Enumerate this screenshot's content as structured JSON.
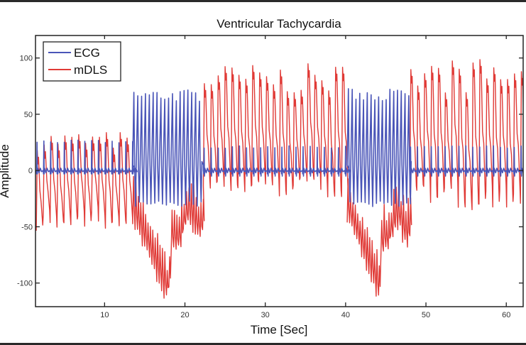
{
  "chart_data": {
    "type": "line",
    "title": "Ventricular Tachycardia",
    "xlabel": "Time  [Sec]",
    "ylabel": "Amplitude",
    "xlim": [
      1.4,
      62.1
    ],
    "ylim": [
      -121,
      120
    ],
    "xticks": [
      10,
      20,
      30,
      40,
      50,
      60
    ],
    "xtick_labels": [
      "10",
      "20",
      "30",
      "40",
      "50",
      "60"
    ],
    "yticks": [
      100,
      50,
      0,
      -50,
      -100
    ],
    "ytick_labels": [
      "100",
      "50",
      "0",
      "-50",
      "-100"
    ],
    "grid": false,
    "legend": {
      "position": "top-left",
      "entries": [
        "ECG",
        "mDLS"
      ]
    },
    "series": [
      {
        "name": "ECG",
        "color": "#4a55b8",
        "segments": [
          {
            "t_start": 1.5,
            "t_end": 13.5,
            "rhythm": "normal",
            "beat_interval_sec": 0.85,
            "peak": 27,
            "trough": -3
          },
          {
            "t_start": 13.5,
            "t_end": 22.3,
            "rhythm": "vt",
            "beat_interval_sec": 0.48,
            "peak": 72,
            "trough": -32
          },
          {
            "t_start": 22.3,
            "t_end": 40.2,
            "rhythm": "normal",
            "beat_interval_sec": 0.88,
            "peak": 22,
            "trough": -5
          },
          {
            "t_start": 40.2,
            "t_end": 48.0,
            "rhythm": "vt",
            "beat_interval_sec": 0.47,
            "peak": 73,
            "trough": -32
          },
          {
            "t_start": 48.0,
            "t_end": 62.1,
            "rhythm": "normal",
            "beat_interval_sec": 0.86,
            "peak": 22,
            "trough": -5
          }
        ]
      },
      {
        "name": "mDLS",
        "color": "#e03a36",
        "segments": [
          {
            "t_start": 1.5,
            "t_end": 13.5,
            "rhythm": "normal",
            "baseline": -8,
            "peak": 35,
            "trough": -55
          },
          {
            "t_start": 13.5,
            "t_end": 22.3,
            "rhythm": "vt",
            "baseline_start": -30,
            "baseline_min": -105,
            "baseline_end": -45,
            "min": -116
          },
          {
            "t_start": 22.3,
            "t_end": 40.2,
            "rhythm": "normal",
            "baseline": 25,
            "peak": 95,
            "trough": -25
          },
          {
            "t_start": 40.2,
            "t_end": 48.0,
            "rhythm": "vt",
            "baseline_start": -30,
            "baseline_min": -100,
            "baseline_end": -50,
            "min": -116
          },
          {
            "t_start": 48.0,
            "t_end": 62.1,
            "rhythm": "normal",
            "baseline": 20,
            "peak": 100,
            "trough": -35
          }
        ]
      }
    ]
  }
}
